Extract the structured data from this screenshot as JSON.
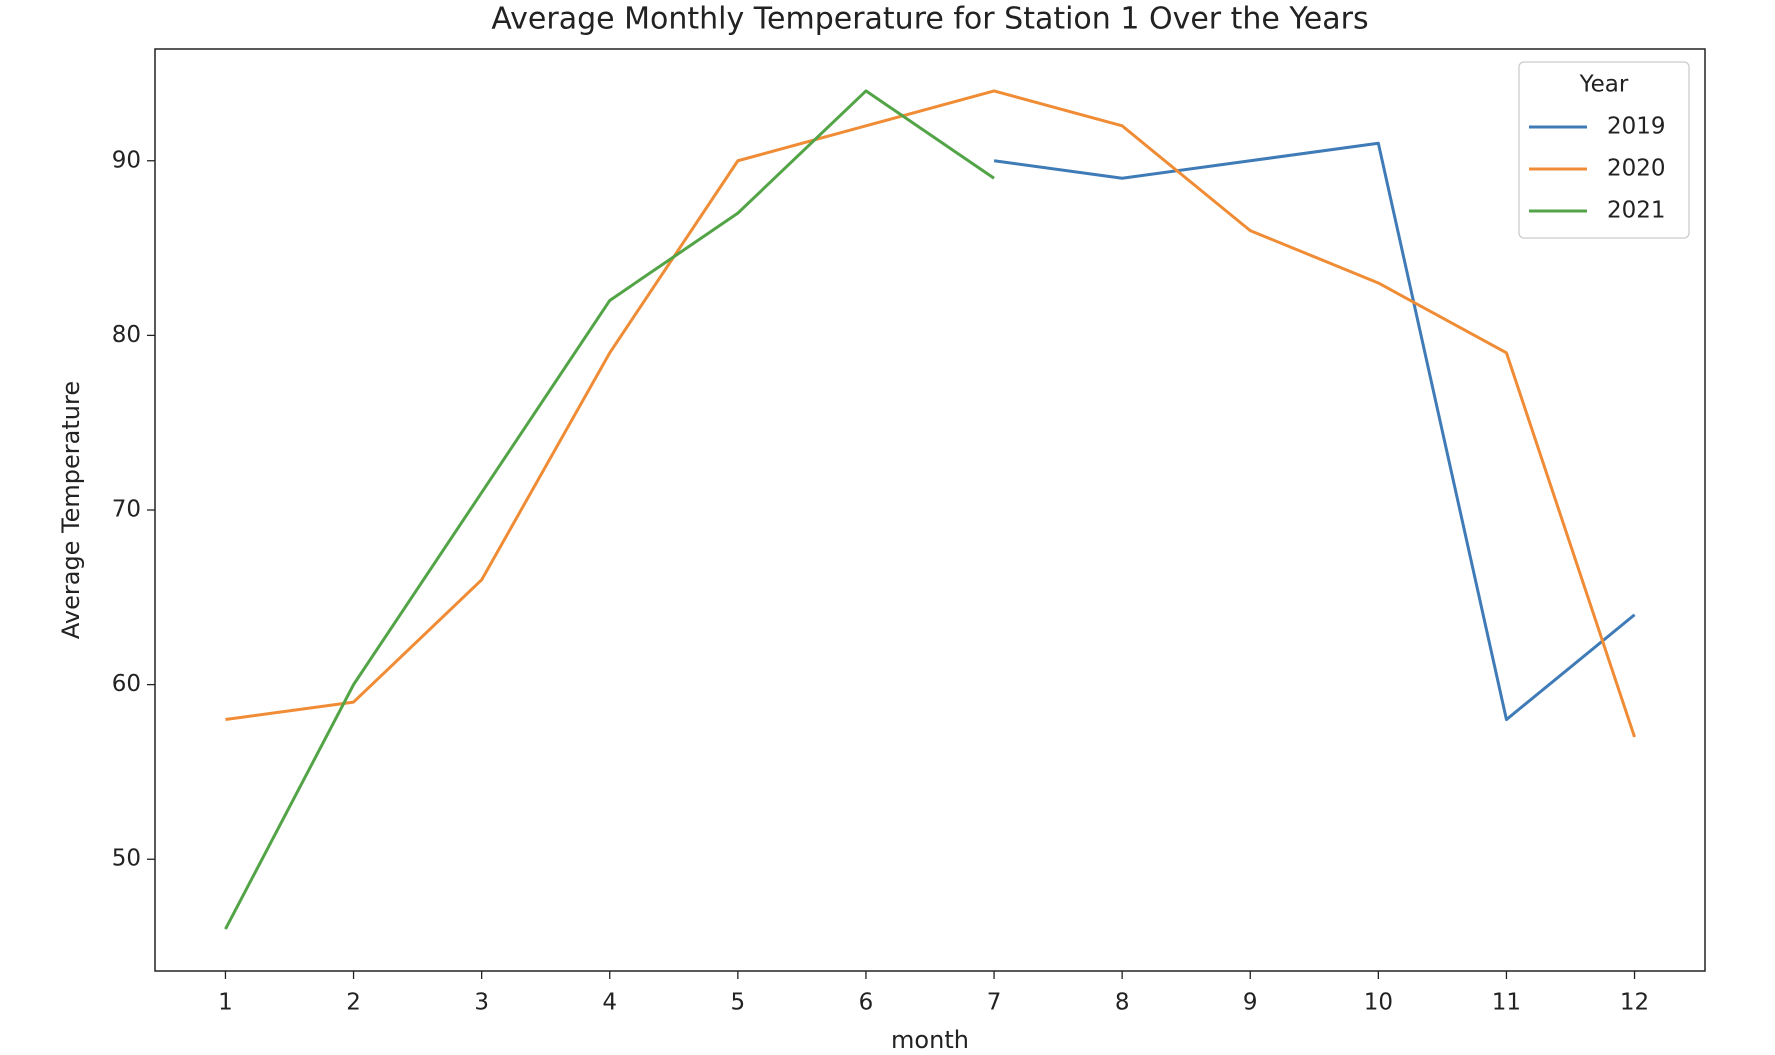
{
  "chart_data": {
    "type": "line",
    "title": "Average Monthly Temperature for Station 1 Over the Years",
    "x_label": "month",
    "y_label": "Average Temperature",
    "x": [
      1,
      2,
      3,
      4,
      5,
      6,
      7,
      8,
      9,
      10,
      11,
      12
    ],
    "series": [
      {
        "name": "2019",
        "color": "#3f7bb6",
        "values": [
          null,
          null,
          null,
          null,
          null,
          null,
          90,
          89,
          90,
          91,
          58,
          64
        ]
      },
      {
        "name": "2020",
        "color": "#f08c35",
        "values": [
          58,
          59,
          66,
          79,
          90,
          92,
          94,
          92,
          86,
          83,
          79,
          57
        ]
      },
      {
        "name": "2021",
        "color": "#52a447",
        "values": [
          46,
          60,
          71,
          82,
          87,
          94,
          89,
          null,
          null,
          null,
          null,
          null
        ]
      }
    ],
    "xlim": [
      0.45,
      12.55
    ],
    "xticks": [
      1,
      2,
      3,
      4,
      5,
      6,
      7,
      8,
      9,
      10,
      11,
      12
    ],
    "ylim": [
      43.6,
      96.4
    ],
    "yticks": [
      50,
      60,
      70,
      80,
      90
    ],
    "legend_title": "Year",
    "legend": "upper right",
    "grid": false
  }
}
